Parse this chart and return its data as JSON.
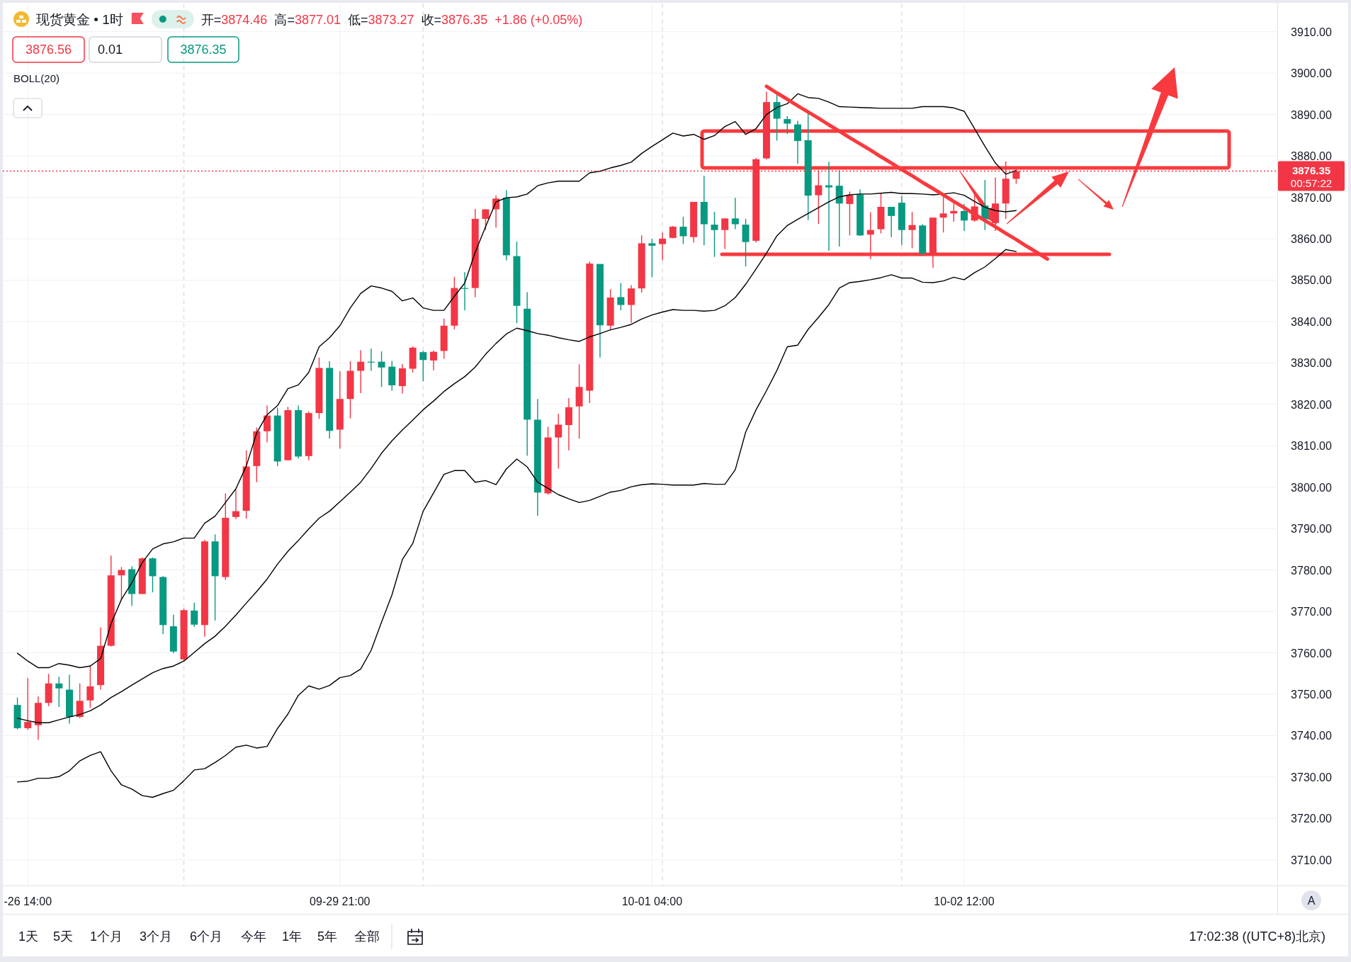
{
  "chart_data": {
    "type": "candlestick",
    "title": "现货黄金 • 1时",
    "categories": [
      null,
      "-26 14:00",
      null,
      null,
      null,
      null,
      null,
      null,
      null,
      null,
      null,
      null,
      null,
      null,
      null,
      null,
      null,
      null,
      null,
      null,
      null,
      null,
      null,
      null,
      null,
      null,
      null,
      null,
      null,
      null,
      null,
      "09-29 21:00",
      null,
      null,
      null,
      null,
      null,
      null,
      null,
      null,
      null,
      null,
      null,
      null,
      null,
      null,
      null,
      null,
      null,
      null,
      null,
      null,
      null,
      null,
      null,
      null,
      null,
      null,
      null,
      null,
      null,
      "10-01 04:00",
      null,
      null,
      null,
      null,
      null,
      null,
      null,
      null,
      null,
      null,
      null,
      null,
      null,
      null,
      null,
      null,
      null,
      null,
      null,
      null,
      null,
      null,
      null,
      null,
      null,
      null,
      null,
      null,
      null,
      "10-02 12:00",
      null,
      null,
      null,
      null,
      null,
      null,
      null,
      null,
      null,
      null,
      null,
      null,
      null,
      null,
      null,
      null,
      null,
      null,
      null,
      null,
      null,
      null,
      null,
      null,
      null,
      null,
      null,
      null,
      null,
      null
    ],
    "ohlc": [
      [
        3747.4,
        3749.2,
        3741.5,
        3741.8
      ],
      [
        3741.8,
        3753.9,
        3741.4,
        3743.3
      ],
      [
        3742.5,
        3749.5,
        3739.0,
        3747.9
      ],
      [
        3747.9,
        3754.9,
        3747.1,
        3752.6
      ],
      [
        3752.6,
        3754.2,
        3746.9,
        3751.4
      ],
      [
        3751.1,
        3754.7,
        3742.9,
        3744.5
      ],
      [
        3744.5,
        3752.6,
        3744.2,
        3748.4
      ],
      [
        3748.5,
        3757.0,
        3746.7,
        3751.9
      ],
      [
        3752.2,
        3766.1,
        3751.1,
        3761.7
      ],
      [
        3761.7,
        3783.5,
        3761.5,
        3778.7
      ],
      [
        3778.7,
        3780.7,
        3772.9,
        3780.0
      ],
      [
        3780.2,
        3780.9,
        3771.3,
        3774.2
      ],
      [
        3774.2,
        3783.0,
        3774.2,
        3782.8
      ],
      [
        3782.8,
        3783.0,
        3774.6,
        3778.5
      ],
      [
        3778.3,
        3778.5,
        3764.5,
        3766.7
      ],
      [
        3766.4,
        3769.2,
        3759.9,
        3760.3
      ],
      [
        3758.4,
        3770.7,
        3757.9,
        3770.3
      ],
      [
        3770.2,
        3772.1,
        3766.3,
        3766.8
      ],
      [
        3766.7,
        3787.3,
        3763.9,
        3786.9
      ],
      [
        3786.9,
        3788.6,
        3767.8,
        3778.5
      ],
      [
        3778.3,
        3798.5,
        3777.6,
        3792.6
      ],
      [
        3792.8,
        3799.4,
        3792.3,
        3794.2
      ],
      [
        3794.3,
        3808.9,
        3792.4,
        3805.0
      ],
      [
        3805.1,
        3814.4,
        3801.2,
        3813.5
      ],
      [
        3813.5,
        3819.7,
        3810.8,
        3817.3
      ],
      [
        3817.3,
        3819.2,
        3805.1,
        3806.2
      ],
      [
        3806.5,
        3819.4,
        3806.5,
        3818.6
      ],
      [
        3818.6,
        3819.7,
        3806.9,
        3807.4
      ],
      [
        3807.5,
        3818.3,
        3806.5,
        3817.9
      ],
      [
        3817.9,
        3831.3,
        3816.5,
        3828.8
      ],
      [
        3828.8,
        3830.4,
        3811.7,
        3813.6
      ],
      [
        3813.9,
        3828.0,
        3809.3,
        3821.3
      ],
      [
        3821.3,
        3830.4,
        3816.6,
        3828.1
      ],
      [
        3828.1,
        3833.1,
        3822.7,
        3830.3
      ],
      [
        3830.3,
        3833.5,
        3828.1,
        3830.1
      ],
      [
        3830.3,
        3832.8,
        3824.2,
        3828.9
      ],
      [
        3829.1,
        3830.5,
        3823.3,
        3824.6
      ],
      [
        3824.4,
        3829.7,
        3822.6,
        3828.7
      ],
      [
        3828.6,
        3834.0,
        3827.7,
        3833.7
      ],
      [
        3832.6,
        3832.9,
        3825.6,
        3830.7
      ],
      [
        3830.6,
        3833.0,
        3828.2,
        3832.7
      ],
      [
        3832.9,
        3840.7,
        3831.0,
        3839.0
      ],
      [
        3839.0,
        3850.8,
        3838.1,
        3848.1
      ],
      [
        3848.1,
        3851.9,
        3842.7,
        3848.0
      ],
      [
        3848.1,
        3867.2,
        3845.9,
        3864.8
      ],
      [
        3864.8,
        3867.1,
        3862.1,
        3867.1
      ],
      [
        3867.1,
        3870.5,
        3862.7,
        3869.7
      ],
      [
        3869.9,
        3871.7,
        3854.8,
        3856.0
      ],
      [
        3855.8,
        3859.3,
        3839.6,
        3843.8
      ],
      [
        3843.1,
        3847.1,
        3807.6,
        3816.3
      ],
      [
        3816.3,
        3821.3,
        3793.1,
        3798.7
      ],
      [
        3798.5,
        3814.6,
        3798.2,
        3812.0
      ],
      [
        3812.0,
        3817.7,
        3804.5,
        3815.1
      ],
      [
        3815.0,
        3821.5,
        3808.9,
        3819.3
      ],
      [
        3819.5,
        3829.7,
        3811.7,
        3824.2
      ],
      [
        3823.3,
        3854.5,
        3820.3,
        3854.0
      ],
      [
        3853.9,
        3853.9,
        3831.3,
        3839.1
      ],
      [
        3839.0,
        3847.8,
        3838.1,
        3845.8
      ],
      [
        3845.9,
        3849.3,
        3842.7,
        3844.0
      ],
      [
        3844.0,
        3848.8,
        3839.7,
        3848.0
      ],
      [
        3848.0,
        3860.8,
        3847.0,
        3858.9
      ],
      [
        3858.9,
        3860.0,
        3850.7,
        3858.3
      ],
      [
        3858.7,
        3861.5,
        3854.8,
        3860.0
      ],
      [
        3860.2,
        3863.1,
        3860.1,
        3862.9
      ],
      [
        3862.9,
        3865.3,
        3858.7,
        3860.6
      ],
      [
        3860.4,
        3868.9,
        3859.1,
        3868.9
      ],
      [
        3868.9,
        3875.2,
        3858.4,
        3863.5
      ],
      [
        3863.4,
        3866.5,
        3855.6,
        3862.1
      ],
      [
        3862.1,
        3864.9,
        3857.5,
        3864.9
      ],
      [
        3864.9,
        3869.9,
        3862.3,
        3863.5
      ],
      [
        3863.4,
        3864.8,
        3853.3,
        3859.2
      ],
      [
        3859.5,
        3879.5,
        3859.1,
        3879.2
      ],
      [
        3879.4,
        3895.5,
        3879.1,
        3893.0
      ],
      [
        3893.0,
        3894.9,
        3883.7,
        3889.0
      ],
      [
        3888.9,
        3889.6,
        3885.3,
        3887.8
      ],
      [
        3887.6,
        3888.5,
        3878.1,
        3883.6
      ],
      [
        3883.8,
        3890.3,
        3864.5,
        3870.4
      ],
      [
        3870.5,
        3876.5,
        3863.6,
        3872.9
      ],
      [
        3872.9,
        3878.6,
        3857.1,
        3872.4
      ],
      [
        3872.8,
        3876.5,
        3858.1,
        3868.5
      ],
      [
        3868.4,
        3871.4,
        3860.8,
        3870.5
      ],
      [
        3870.7,
        3871.9,
        3860.7,
        3860.8
      ],
      [
        3861.0,
        3866.4,
        3855.1,
        3862.1
      ],
      [
        3862.3,
        3871.1,
        3861.3,
        3867.7
      ],
      [
        3867.7,
        3867.7,
        3860.4,
        3865.5
      ],
      [
        3868.7,
        3870.4,
        3858.5,
        3862.1
      ],
      [
        3862.1,
        3866.5,
        3857.7,
        3863.3
      ],
      [
        3863.2,
        3863.5,
        3856.2,
        3856.4
      ],
      [
        3856.4,
        3865.1,
        3853.0,
        3865.1
      ],
      [
        3865.1,
        3870.1,
        3861.5,
        3866.1
      ],
      [
        3866.1,
        3868.5,
        3864.1,
        3866.7
      ],
      [
        3866.7,
        3868.4,
        3861.9,
        3864.4
      ],
      [
        3864.4,
        3871.1,
        3864.1,
        3867.8
      ],
      [
        3868.0,
        3874.2,
        3862.1,
        3864.7
      ],
      [
        3863.8,
        3874.8,
        3861.9,
        3868.5
      ],
      [
        3868.5,
        3878.7,
        3864.8,
        3874.5
      ],
      [
        3874.46,
        3877.01,
        3873.27,
        3876.35
      ],
      null,
      null,
      null,
      null,
      null,
      null,
      null,
      null,
      null,
      null,
      null,
      null,
      null,
      null,
      null,
      null,
      null,
      null,
      null,
      null,
      null,
      null,
      null,
      null,
      null
    ],
    "colors": [
      "#089981",
      "#f23645",
      "#f23645",
      "#f23645",
      "#089981",
      "#089981",
      "#f23645",
      "#f23645",
      "#f23645",
      "#f23645",
      "#f23645",
      "#089981",
      "#f23645",
      "#089981",
      "#089981",
      "#089981",
      "#f23645",
      "#089981",
      "#f23645",
      "#089981",
      "#f23645",
      "#f23645",
      "#f23645",
      "#f23645",
      "#f23645",
      "#089981",
      "#f23645",
      "#089981",
      "#f23645",
      "#f23645",
      "#089981",
      "#f23645",
      "#f23645",
      "#f23645",
      "#089981",
      "#089981",
      "#089981",
      "#f23645",
      "#f23645",
      "#089981",
      "#f23645",
      "#f23645",
      "#f23645",
      "#089981",
      "#f23645",
      "#f23645",
      "#f23645",
      "#089981",
      "#089981",
      "#089981",
      "#089981",
      "#f23645",
      "#f23645",
      "#f23645",
      "#f23645",
      "#f23645",
      "#089981",
      "#f23645",
      "#089981",
      "#f23645",
      "#f23645",
      "#089981",
      "#f23645",
      "#f23645",
      "#089981",
      "#f23645",
      "#089981",
      "#089981",
      "#f23645",
      "#089981",
      "#089981",
      "#f23645",
      "#f23645",
      "#089981",
      "#089981",
      "#089981",
      "#089981",
      "#f23645",
      "#089981",
      "#089981",
      "#f23645",
      "#089981",
      "#f23645",
      "#f23645",
      "#089981",
      "#089981",
      "#f23645",
      "#089981",
      "#f23645",
      "#f23645",
      "#f23645",
      "#089981",
      "#f23645",
      "#089981",
      "#f23645",
      "#f23645",
      "#f23645",
      null,
      null,
      null,
      null,
      null,
      null,
      null,
      null,
      null,
      null,
      null,
      null,
      null,
      null,
      null,
      null,
      null,
      null,
      null,
      null,
      null,
      null,
      null,
      null,
      null
    ],
    "series": [
      {
        "type": "line",
        "color": "#000000",
        "values": [
          3759.9,
          3758.0,
          3756.4,
          3756.4,
          3757.4,
          3757.0,
          3756.4,
          3756.8,
          3758.6,
          3767.0,
          3772.9,
          3776.9,
          3781.8,
          3785.1,
          3786.3,
          3786.8,
          3787.7,
          3787.7,
          3791.3,
          3793.0,
          3796.3,
          3799.6,
          3805.1,
          3813.1,
          3817.5,
          3819.7,
          3823.8,
          3824.7,
          3827.7,
          3833.9,
          3836.1,
          3839.0,
          3843.3,
          3846.8,
          3848.6,
          3848.1,
          3847.3,
          3845.0,
          3845.7,
          3843.3,
          3842.7,
          3842.7,
          3846.1,
          3849.3,
          3856.7,
          3862.9,
          3868.9,
          3869.9,
          3870.1,
          3870.8,
          3872.8,
          3873.5,
          3873.9,
          3873.9,
          3873.9,
          3875.9,
          3876.3,
          3877.1,
          3877.7,
          3878.5,
          3880.6,
          3882.3,
          3883.9,
          3885.5,
          3884.8,
          3885.2,
          3884.0,
          3884.9,
          3887.1,
          3888.3,
          3885.2,
          3886.6,
          3890.0,
          3891.7,
          3892.6,
          3895.0,
          3894.1,
          3893.9,
          3893.0,
          3891.9,
          3891.8,
          3891.7,
          3891.6,
          3891.5,
          3891.5,
          3891.5,
          3891.5,
          3891.9,
          3891.9,
          3891.9,
          3891.6,
          3890.8,
          3886.6,
          3882.3,
          3878.3,
          3875.6,
          3876.5,
          null,
          null,
          null,
          null,
          null,
          null,
          null,
          null,
          null,
          null,
          null,
          null,
          null,
          null,
          null,
          null,
          null,
          null,
          null,
          null,
          null,
          null,
          null,
          null,
          null
        ]
      },
      {
        "type": "line",
        "color": "#000000",
        "values": [
          3744.2,
          3743.6,
          3743.1,
          3743.1,
          3743.8,
          3744.5,
          3745.1,
          3746.0,
          3747.4,
          3749.2,
          3750.6,
          3752.2,
          3753.7,
          3755.2,
          3756.2,
          3756.8,
          3758.0,
          3760.1,
          3762.2,
          3764.0,
          3766.4,
          3769.1,
          3772.0,
          3774.8,
          3777.8,
          3781.4,
          3784.5,
          3787.1,
          3789.9,
          3792.5,
          3794.2,
          3796.5,
          3798.8,
          3801.2,
          3804.5,
          3808.2,
          3811.2,
          3813.8,
          3816.2,
          3818.7,
          3820.8,
          3823.1,
          3825.0,
          3826.7,
          3829.0,
          3832.1,
          3834.7,
          3837.0,
          3838.4,
          3837.8,
          3837.1,
          3836.7,
          3836.1,
          3835.6,
          3835.2,
          3836.3,
          3837.1,
          3838.0,
          3838.6,
          3839.3,
          3840.6,
          3841.6,
          3842.3,
          3842.9,
          3842.7,
          3842.7,
          3842.5,
          3842.7,
          3843.8,
          3845.8,
          3849.0,
          3852.7,
          3856.5,
          3860.7,
          3863.2,
          3864.7,
          3866.1,
          3867.5,
          3868.9,
          3870.1,
          3870.6,
          3870.8,
          3870.8,
          3871.0,
          3871.2,
          3870.9,
          3870.9,
          3870.8,
          3870.6,
          3870.8,
          3871.1,
          3870.5,
          3869.0,
          3867.6,
          3866.8,
          3866.5,
          3866.8,
          null,
          null,
          null,
          null,
          null,
          null,
          null,
          null,
          null,
          null,
          null,
          null,
          null,
          null,
          null,
          null,
          null,
          null,
          null,
          null,
          null,
          null,
          null,
          null,
          null
        ]
      },
      {
        "type": "line",
        "color": "#000000",
        "values": [
          3728.8,
          3729.0,
          3729.7,
          3729.7,
          3730.1,
          3731.5,
          3733.9,
          3735.2,
          3736.1,
          3731.5,
          3728.1,
          3727.1,
          3725.5,
          3725.1,
          3726.0,
          3726.8,
          3729.1,
          3731.7,
          3732.0,
          3733.5,
          3735.2,
          3737.2,
          3737.7,
          3737.0,
          3737.4,
          3741.7,
          3745.2,
          3749.7,
          3752.0,
          3751.2,
          3752.1,
          3754.0,
          3754.5,
          3756.1,
          3760.6,
          3767.4,
          3774.0,
          3782.5,
          3786.4,
          3794.2,
          3798.6,
          3803.1,
          3804.0,
          3804.0,
          3801.2,
          3801.6,
          3800.6,
          3804.4,
          3806.8,
          3804.9,
          3801.2,
          3799.7,
          3798.2,
          3797.2,
          3796.3,
          3796.8,
          3797.8,
          3798.8,
          3799.2,
          3800.1,
          3800.6,
          3800.8,
          3800.7,
          3800.5,
          3800.5,
          3800.5,
          3800.9,
          3800.7,
          3800.7,
          3804.2,
          3813.3,
          3818.7,
          3823.3,
          3828.2,
          3833.9,
          3834.3,
          3838.1,
          3841.0,
          3844.1,
          3848.1,
          3849.4,
          3849.7,
          3850.1,
          3850.6,
          3851.3,
          3850.5,
          3850.5,
          3849.5,
          3849.4,
          3849.8,
          3850.7,
          3850.1,
          3851.8,
          3853.2,
          3855.2,
          3857.4,
          3856.9,
          null,
          null,
          null,
          null,
          null,
          null,
          null,
          null,
          null,
          null,
          null,
          null,
          null,
          null,
          null,
          null,
          null,
          null,
          null,
          null,
          null,
          null,
          null,
          null,
          null
        ]
      },
      {
        "type": "line",
        "color": "#f83a3e",
        "values": [
          null,
          null,
          null,
          null,
          null,
          null,
          null,
          null,
          null,
          null,
          null,
          null,
          null,
          null,
          null,
          null,
          null,
          null,
          null,
          null,
          null,
          null,
          null,
          null,
          null,
          null,
          null,
          null,
          null,
          null,
          null,
          null,
          null,
          null,
          null,
          null,
          null,
          null,
          null,
          null,
          null,
          null,
          null,
          null,
          null,
          null,
          null,
          null,
          null,
          null,
          null,
          null,
          null,
          null,
          null,
          null,
          null,
          null,
          null,
          null,
          null,
          null,
          null,
          null,
          null,
          null,
          null,
          null,
          null,
          null,
          null,
          null,
          3896.8,
          3895.2,
          3893.7,
          3892.1,
          3890.6,
          3889.1,
          3887.5,
          3886.0,
          3884.4,
          3882.9,
          3881.4,
          3879.8,
          3878.3,
          3876.7,
          3875.2,
          3873.6,
          3872.1,
          3870.6,
          3869.0,
          3867.5,
          3865.9,
          3864.4,
          3862.9,
          3861.3,
          3859.8,
          3858.2,
          3856.7,
          3855.1,
          null,
          null,
          null,
          null,
          null,
          null,
          null,
          null,
          null,
          null,
          null,
          null,
          null,
          null,
          null,
          null,
          null,
          null,
          null,
          null,
          null,
          null
        ]
      }
    ],
    "ylim": [
      3703.8,
      3916.8
    ],
    "yticks": [
      {
        "value": 3710,
        "label": "3710.00"
      },
      {
        "value": 3720,
        "label": "3720.00"
      },
      {
        "value": 3730,
        "label": "3730.00"
      },
      {
        "value": 3740,
        "label": "3740.00"
      },
      {
        "value": 3750,
        "label": "3750.00"
      },
      {
        "value": 3760,
        "label": "3760.00"
      },
      {
        "value": 3770,
        "label": "3770.00"
      },
      {
        "value": 3780,
        "label": "3780.00"
      },
      {
        "value": 3790,
        "label": "3790.00"
      },
      {
        "value": 3800,
        "label": "3800.00"
      },
      {
        "value": 3810,
        "label": "3810.00"
      },
      {
        "value": 3820,
        "label": "3820.00"
      },
      {
        "value": 3830,
        "label": "3830.00"
      },
      {
        "value": 3840,
        "label": "3840.00"
      },
      {
        "value": 3850,
        "label": "3850.00"
      },
      {
        "value": 3860,
        "label": "3860.00"
      },
      {
        "value": 3870,
        "label": "3870.00"
      },
      {
        "value": 3880,
        "label": "3880.00"
      },
      {
        "value": 3890,
        "label": "3890.00"
      },
      {
        "value": 3900,
        "label": "3900.00"
      },
      {
        "value": 3910,
        "label": "3910.00"
      }
    ],
    "grid": true,
    "ref_lines": [
      {
        "axis": "y",
        "value": 3876.35,
        "label": "3876.35",
        "color": "#f23645",
        "line_style": "dotted"
      }
    ],
    "annotations": [
      "开=3874.46",
      "高=3877.01",
      "低=3873.27",
      "收=3876.35",
      "+1.86 (+0.05%)",
      "3876.56",
      "0.01",
      "3876.35",
      "BOLL(20)",
      "00:57:22",
      "1天",
      "5天",
      "1个月",
      "3个月",
      "6个月",
      "今年",
      "1年",
      "5年",
      "全部",
      "17:02:38 ((UTC+8)北京)",
      "A"
    ]
  }
}
